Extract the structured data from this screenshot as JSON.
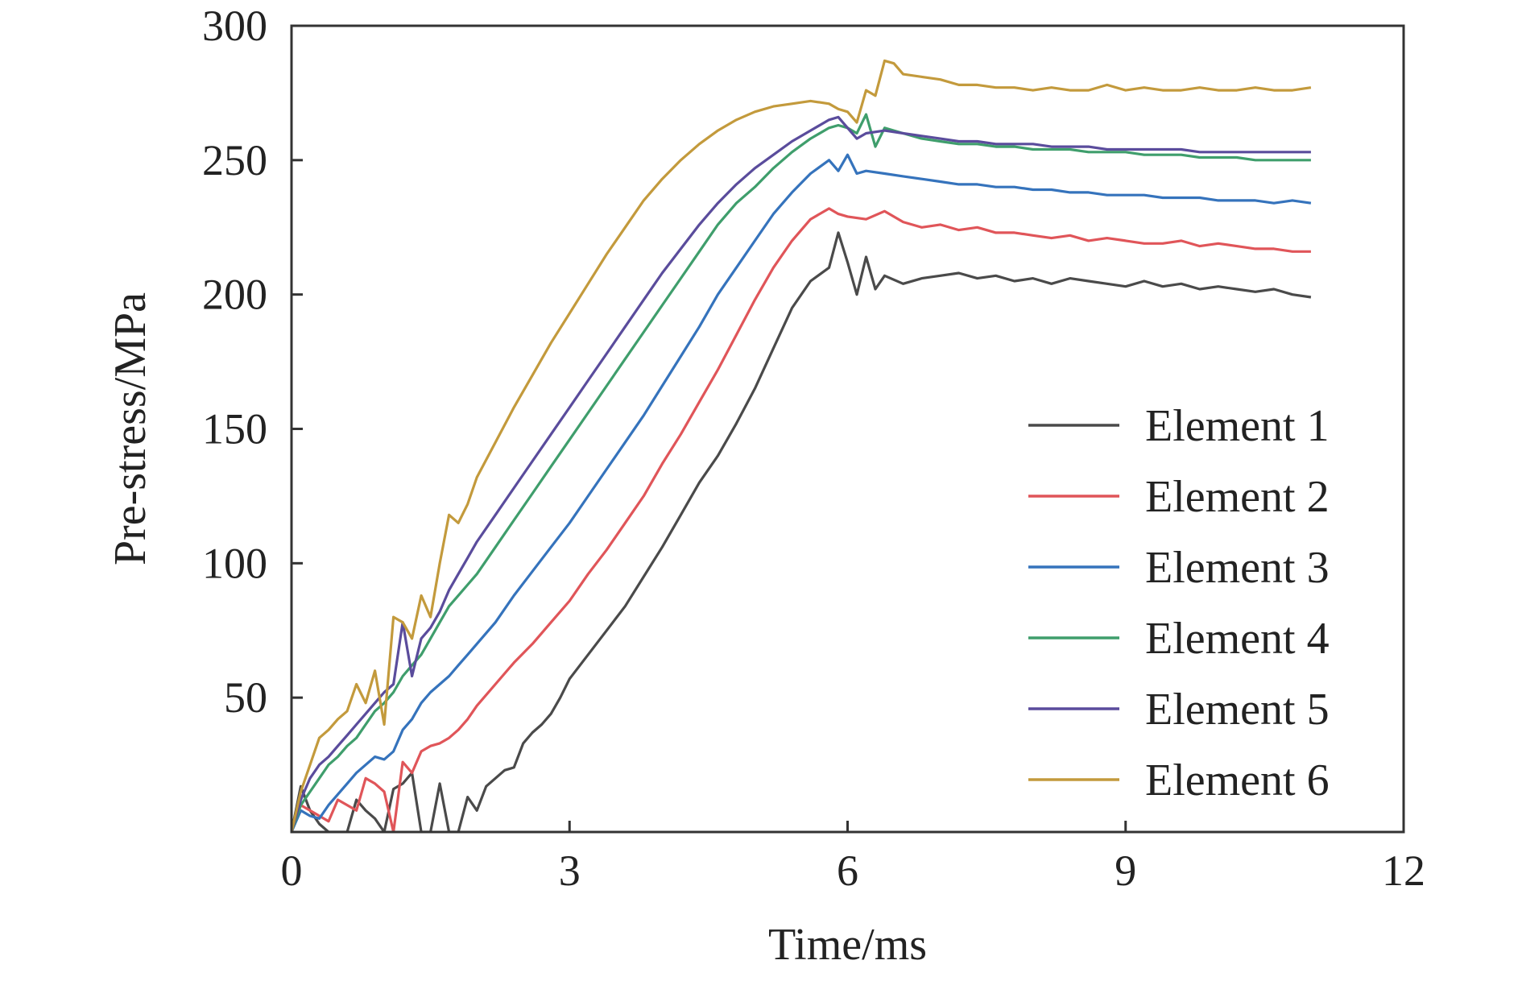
{
  "chart_data": {
    "type": "line",
    "xlabel": "Time/ms",
    "ylabel": "Pre-stress/MPa",
    "xlim": [
      0,
      12
    ],
    "ylim": [
      0,
      300
    ],
    "xticks": [
      0,
      3,
      6,
      9,
      12
    ],
    "xtick_labels": [
      "0",
      "3",
      "6",
      "9",
      "12"
    ],
    "yticks": [
      50,
      100,
      150,
      200,
      250,
      300
    ],
    "ytick_labels": [
      "50",
      "100",
      "150",
      "200",
      "250",
      "300"
    ],
    "grid": false,
    "legend_position": "bottom-right",
    "series": [
      {
        "name": "Element 1",
        "color": "#4a4a4a",
        "x": [
          0,
          0.1,
          0.2,
          0.3,
          0.4,
          0.5,
          0.6,
          0.7,
          0.8,
          0.9,
          1.0,
          1.1,
          1.2,
          1.3,
          1.4,
          1.5,
          1.6,
          1.7,
          1.8,
          1.9,
          2.0,
          2.1,
          2.2,
          2.3,
          2.4,
          2.5,
          2.6,
          2.7,
          2.8,
          2.9,
          3.0,
          3.2,
          3.4,
          3.6,
          3.8,
          4.0,
          4.2,
          4.4,
          4.6,
          4.8,
          5.0,
          5.2,
          5.4,
          5.6,
          5.8,
          5.9,
          6.0,
          6.1,
          6.2,
          6.3,
          6.4,
          6.6,
          6.8,
          7.0,
          7.2,
          7.4,
          7.6,
          7.8,
          8.0,
          8.2,
          8.4,
          8.6,
          8.8,
          9.0,
          9.2,
          9.4,
          9.6,
          9.8,
          10.0,
          10.2,
          10.4,
          10.6,
          10.8,
          11.0
        ],
        "values": [
          0,
          17,
          8,
          3,
          0,
          0,
          0,
          12,
          8,
          5,
          0,
          16,
          18,
          22,
          0,
          0,
          18,
          0,
          0,
          13,
          8,
          17,
          20,
          23,
          24,
          33,
          37,
          40,
          44,
          50,
          57,
          66,
          75,
          84,
          95,
          106,
          118,
          130,
          140,
          152,
          165,
          180,
          195,
          205,
          210,
          223,
          212,
          200,
          214,
          202,
          207,
          204,
          206,
          207,
          208,
          206,
          207,
          205,
          206,
          204,
          206,
          205,
          204,
          203,
          205,
          203,
          204,
          202,
          203,
          202,
          201,
          202,
          200,
          199
        ]
      },
      {
        "name": "Element 2",
        "color": "#e05559",
        "x": [
          0,
          0.1,
          0.2,
          0.3,
          0.4,
          0.5,
          0.6,
          0.7,
          0.8,
          0.9,
          1.0,
          1.1,
          1.2,
          1.3,
          1.4,
          1.5,
          1.6,
          1.7,
          1.8,
          1.9,
          2.0,
          2.2,
          2.4,
          2.6,
          2.8,
          3.0,
          3.2,
          3.4,
          3.6,
          3.8,
          4.0,
          4.2,
          4.4,
          4.6,
          4.8,
          5.0,
          5.2,
          5.4,
          5.6,
          5.8,
          5.9,
          6.0,
          6.2,
          6.4,
          6.6,
          6.8,
          7.0,
          7.2,
          7.4,
          7.6,
          7.8,
          8.0,
          8.2,
          8.4,
          8.6,
          8.8,
          9.0,
          9.2,
          9.4,
          9.6,
          9.8,
          10.0,
          10.2,
          10.4,
          10.6,
          10.8,
          11.0
        ],
        "values": [
          0,
          10,
          8,
          6,
          4,
          12,
          10,
          8,
          20,
          18,
          15,
          0,
          26,
          22,
          30,
          32,
          33,
          35,
          38,
          42,
          47,
          55,
          63,
          70,
          78,
          86,
          96,
          105,
          115,
          125,
          137,
          148,
          160,
          172,
          185,
          198,
          210,
          220,
          228,
          232,
          230,
          229,
          228,
          231,
          227,
          225,
          226,
          224,
          225,
          223,
          223,
          222,
          221,
          222,
          220,
          221,
          220,
          219,
          219,
          220,
          218,
          219,
          218,
          217,
          217,
          216,
          216
        ]
      },
      {
        "name": "Element 3",
        "color": "#3573bc",
        "x": [
          0,
          0.1,
          0.2,
          0.3,
          0.4,
          0.5,
          0.6,
          0.7,
          0.8,
          0.9,
          1.0,
          1.1,
          1.2,
          1.3,
          1.4,
          1.5,
          1.6,
          1.7,
          1.8,
          1.9,
          2.0,
          2.2,
          2.4,
          2.6,
          2.8,
          3.0,
          3.2,
          3.4,
          3.6,
          3.8,
          4.0,
          4.2,
          4.4,
          4.6,
          4.8,
          5.0,
          5.2,
          5.4,
          5.6,
          5.8,
          5.9,
          6.0,
          6.1,
          6.2,
          6.4,
          6.6,
          6.8,
          7.0,
          7.2,
          7.4,
          7.6,
          7.8,
          8.0,
          8.2,
          8.4,
          8.6,
          8.8,
          9.0,
          9.2,
          9.4,
          9.6,
          9.8,
          10.0,
          10.2,
          10.4,
          10.6,
          10.8,
          11.0
        ],
        "values": [
          0,
          8,
          6,
          5,
          10,
          14,
          18,
          22,
          25,
          28,
          27,
          30,
          38,
          42,
          48,
          52,
          55,
          58,
          62,
          66,
          70,
          78,
          88,
          97,
          106,
          115,
          125,
          135,
          145,
          155,
          166,
          177,
          188,
          200,
          210,
          220,
          230,
          238,
          245,
          250,
          246,
          252,
          245,
          246,
          245,
          244,
          243,
          242,
          241,
          241,
          240,
          240,
          239,
          239,
          238,
          238,
          237,
          237,
          237,
          236,
          236,
          236,
          235,
          235,
          235,
          234,
          235,
          234
        ]
      },
      {
        "name": "Element 4",
        "color": "#3f9e6c",
        "x": [
          0,
          0.1,
          0.2,
          0.3,
          0.4,
          0.5,
          0.6,
          0.7,
          0.8,
          0.9,
          1.0,
          1.1,
          1.2,
          1.3,
          1.4,
          1.5,
          1.6,
          1.7,
          1.8,
          1.9,
          2.0,
          2.2,
          2.4,
          2.6,
          2.8,
          3.0,
          3.2,
          3.4,
          3.6,
          3.8,
          4.0,
          4.2,
          4.4,
          4.6,
          4.8,
          5.0,
          5.2,
          5.4,
          5.6,
          5.8,
          5.9,
          6.0,
          6.1,
          6.2,
          6.3,
          6.4,
          6.6,
          6.8,
          7.0,
          7.2,
          7.4,
          7.6,
          7.8,
          8.0,
          8.2,
          8.4,
          8.6,
          8.8,
          9.0,
          9.2,
          9.4,
          9.6,
          9.8,
          10.0,
          10.2,
          10.4,
          10.6,
          10.8,
          11.0
        ],
        "values": [
          0,
          10,
          15,
          20,
          25,
          28,
          32,
          35,
          40,
          45,
          48,
          52,
          58,
          62,
          66,
          72,
          78,
          84,
          88,
          92,
          96,
          106,
          116,
          126,
          136,
          146,
          156,
          166,
          176,
          186,
          196,
          206,
          216,
          226,
          234,
          240,
          247,
          253,
          258,
          262,
          263,
          262,
          260,
          267,
          255,
          262,
          260,
          258,
          257,
          256,
          256,
          255,
          255,
          254,
          254,
          254,
          253,
          253,
          253,
          252,
          252,
          252,
          251,
          251,
          251,
          250,
          250,
          250,
          250
        ]
      },
      {
        "name": "Element 5",
        "color": "#5a4c9c",
        "x": [
          0,
          0.1,
          0.2,
          0.3,
          0.4,
          0.5,
          0.6,
          0.7,
          0.8,
          0.9,
          1.0,
          1.1,
          1.2,
          1.3,
          1.4,
          1.5,
          1.6,
          1.7,
          1.8,
          1.9,
          2.0,
          2.2,
          2.4,
          2.6,
          2.8,
          3.0,
          3.2,
          3.4,
          3.6,
          3.8,
          4.0,
          4.2,
          4.4,
          4.6,
          4.8,
          5.0,
          5.2,
          5.4,
          5.6,
          5.8,
          5.9,
          6.0,
          6.1,
          6.2,
          6.4,
          6.6,
          6.8,
          7.0,
          7.2,
          7.4,
          7.6,
          7.8,
          8.0,
          8.2,
          8.4,
          8.6,
          8.8,
          9.0,
          9.2,
          9.4,
          9.6,
          9.8,
          10.0,
          10.2,
          10.4,
          10.6,
          10.8,
          11.0
        ],
        "values": [
          0,
          12,
          20,
          25,
          28,
          32,
          36,
          40,
          44,
          48,
          52,
          55,
          78,
          58,
          72,
          76,
          82,
          90,
          96,
          102,
          108,
          118,
          128,
          138,
          148,
          158,
          168,
          178,
          188,
          198,
          208,
          217,
          226,
          234,
          241,
          247,
          252,
          257,
          261,
          265,
          266,
          262,
          258,
          260,
          261,
          260,
          259,
          258,
          257,
          257,
          256,
          256,
          256,
          255,
          255,
          255,
          254,
          254,
          254,
          254,
          254,
          253,
          253,
          253,
          253,
          253,
          253,
          253
        ]
      },
      {
        "name": "Element 6",
        "color": "#c39a3c",
        "x": [
          0,
          0.1,
          0.2,
          0.3,
          0.4,
          0.5,
          0.6,
          0.7,
          0.8,
          0.9,
          1.0,
          1.1,
          1.2,
          1.3,
          1.4,
          1.5,
          1.6,
          1.7,
          1.8,
          1.9,
          2.0,
          2.2,
          2.4,
          2.6,
          2.8,
          3.0,
          3.2,
          3.4,
          3.6,
          3.8,
          4.0,
          4.2,
          4.4,
          4.6,
          4.8,
          5.0,
          5.2,
          5.4,
          5.6,
          5.8,
          5.9,
          6.0,
          6.1,
          6.2,
          6.3,
          6.4,
          6.5,
          6.6,
          6.8,
          7.0,
          7.2,
          7.4,
          7.6,
          7.8,
          8.0,
          8.2,
          8.4,
          8.6,
          8.8,
          9.0,
          9.2,
          9.4,
          9.6,
          9.8,
          10.0,
          10.2,
          10.4,
          10.6,
          10.8,
          11.0
        ],
        "values": [
          0,
          15,
          25,
          35,
          38,
          42,
          45,
          55,
          48,
          60,
          40,
          80,
          78,
          72,
          88,
          80,
          100,
          118,
          115,
          122,
          132,
          145,
          158,
          170,
          182,
          193,
          204,
          215,
          225,
          235,
          243,
          250,
          256,
          261,
          265,
          268,
          270,
          271,
          272,
          271,
          269,
          268,
          264,
          276,
          274,
          287,
          286,
          282,
          281,
          280,
          278,
          278,
          277,
          277,
          276,
          277,
          276,
          276,
          278,
          276,
          277,
          276,
          276,
          277,
          276,
          276,
          277,
          276,
          276,
          277
        ]
      }
    ]
  }
}
